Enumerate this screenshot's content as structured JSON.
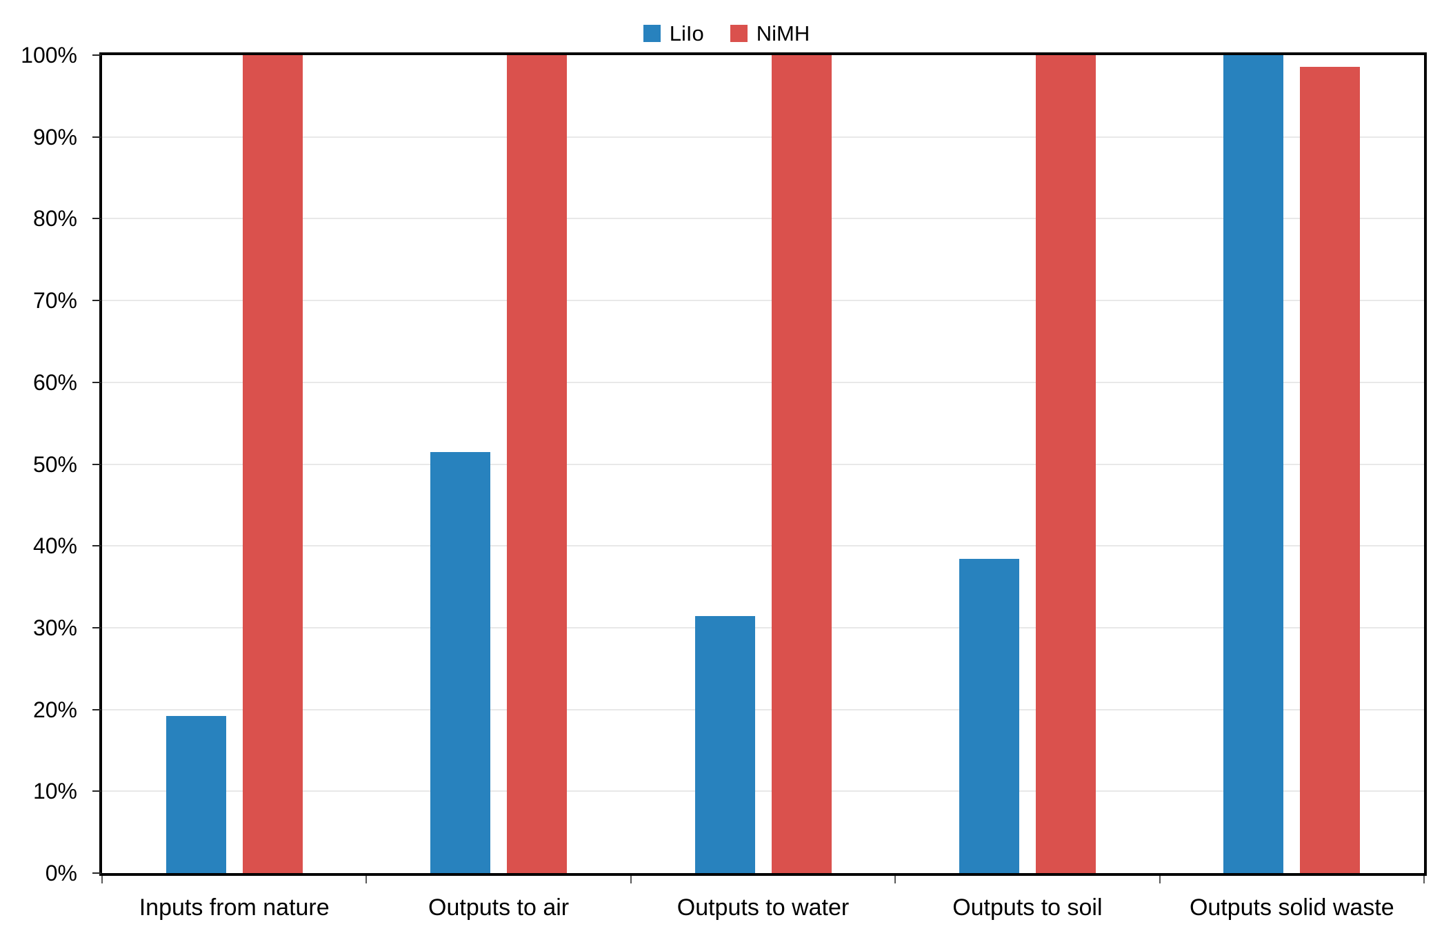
{
  "chart_data": {
    "type": "bar",
    "title": "",
    "categories": [
      "Inputs from nature",
      "Outputs to air",
      "Outputs to water",
      "Outputs to soil",
      "Outputs solid waste"
    ],
    "series": [
      {
        "name": "LiIo",
        "color": "#2882BE",
        "values": [
          19.2,
          51.5,
          31.4,
          38.4,
          100
        ]
      },
      {
        "name": "NiMH",
        "color": "#DA514D",
        "values": [
          100,
          100,
          100,
          100,
          98.6
        ]
      }
    ],
    "xlabel": "",
    "ylabel": "",
    "ylim": [
      0,
      100
    ],
    "ytick_step": 10,
    "ytick_labels": [
      "0%",
      "10%",
      "20%",
      "30%",
      "40%",
      "50%",
      "60%",
      "70%",
      "80%",
      "90%",
      "100%"
    ],
    "grid": "horizontal-only",
    "gridline_color": "#E8E8E8",
    "axis_color": "#000000",
    "legend_position": "top-center",
    "background": "#FFFFFF"
  }
}
